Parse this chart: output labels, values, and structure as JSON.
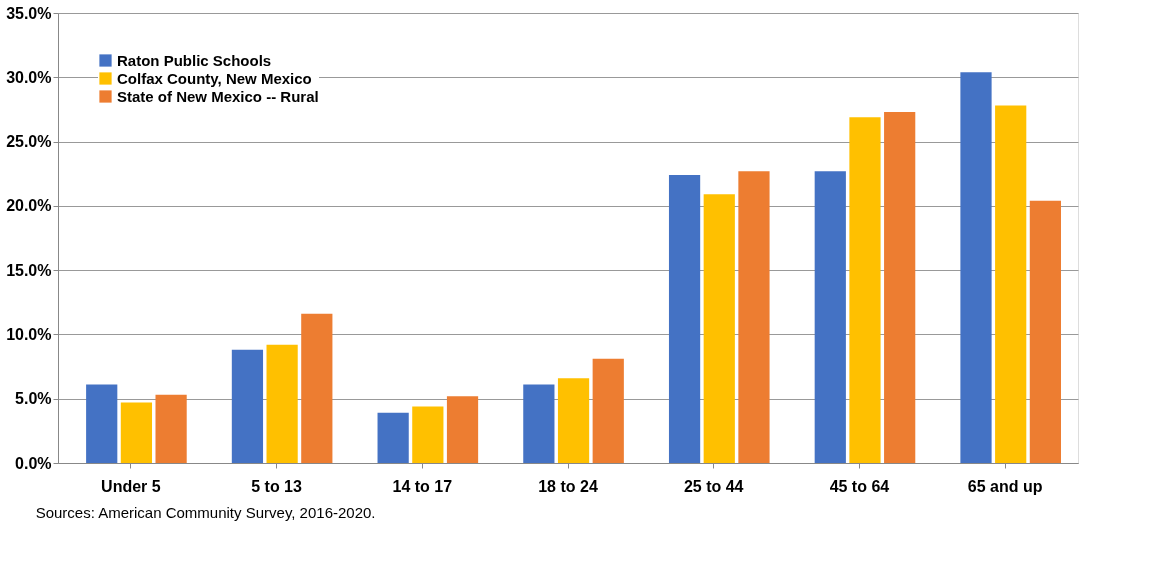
{
  "chart_data": {
    "type": "bar",
    "categories": [
      "Under 5",
      "5 to 13",
      "14 to 17",
      "18 to 24",
      "25 to 44",
      "45 to 64",
      "65 and up"
    ],
    "series": [
      {
        "name": "Raton Public Schools",
        "color": "#4472c4",
        "values": [
          6.1,
          8.8,
          3.9,
          6.1,
          22.4,
          22.7,
          30.4
        ]
      },
      {
        "name": "Colfax County, New Mexico",
        "color": "#ffc000",
        "values": [
          4.7,
          9.2,
          4.4,
          6.6,
          20.9,
          26.9,
          27.8
        ]
      },
      {
        "name": "State of New Mexico -- Rural",
        "color": "#ed7d31",
        "values": [
          5.3,
          11.6,
          5.2,
          8.1,
          22.7,
          27.3,
          20.4
        ]
      }
    ],
    "ylim": [
      0,
      35
    ],
    "yticks": [
      {
        "value": 0,
        "label": "0.0%"
      },
      {
        "value": 5,
        "label": "5.0%"
      },
      {
        "value": 10,
        "label": "10.0%"
      },
      {
        "value": 15,
        "label": "15.0%"
      },
      {
        "value": 20,
        "label": "20.0%"
      },
      {
        "value": 25,
        "label": "25.0%"
      },
      {
        "value": 30,
        "label": "30.0%"
      },
      {
        "value": 35,
        "label": "35.0%"
      }
    ],
    "grid": "y",
    "legend": "top left",
    "annotations": [
      "Sources: American Community Survey, 2016-2020."
    ]
  }
}
